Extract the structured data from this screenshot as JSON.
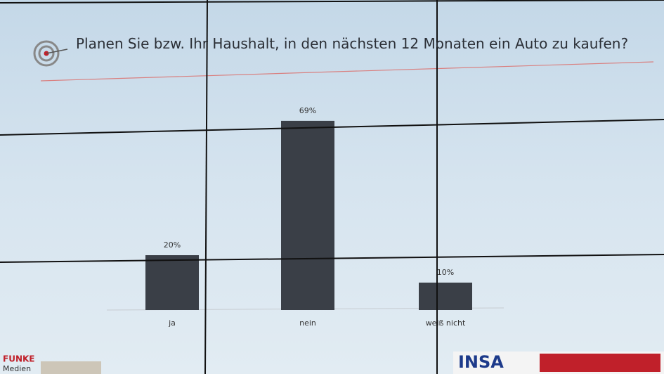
{
  "chart_data": {
    "type": "bar",
    "title": "Planen Sie bzw. Ihr Haushalt, in den nächsten 12 Monaten ein Auto zu kaufen?",
    "categories": [
      "ja",
      "nein",
      "weiß nicht"
    ],
    "values": [
      20,
      69,
      10
    ],
    "value_labels": [
      "20%",
      "69%",
      "10%"
    ],
    "color": "#3a3f47"
  },
  "footer": {
    "left_logo": [
      "FUNKE",
      "Medien"
    ],
    "right_logo": "INSA"
  }
}
